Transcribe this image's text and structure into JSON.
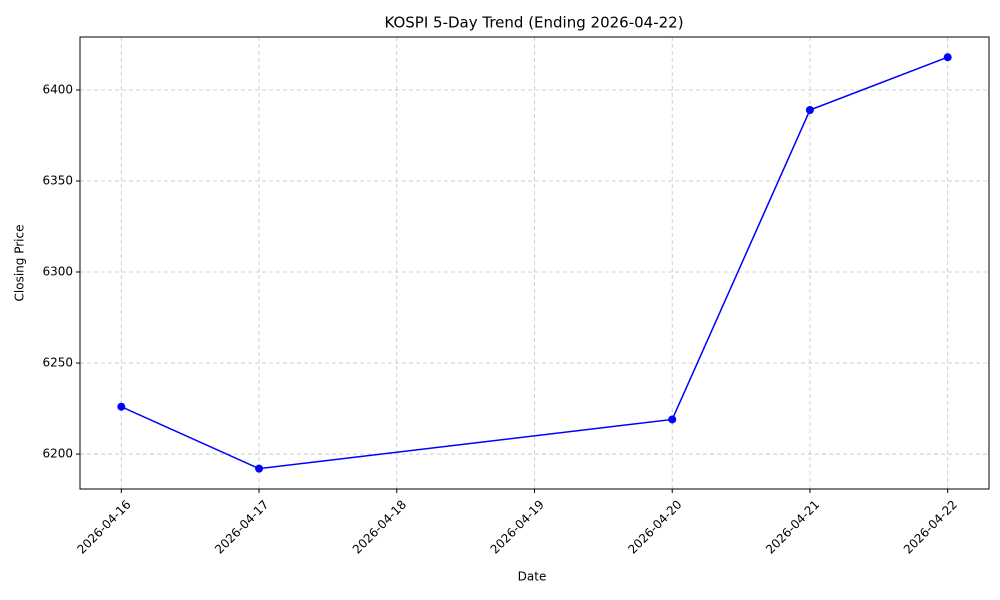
{
  "chart_data": {
    "type": "line",
    "title": "KOSPI 5-Day Trend (Ending 2026-04-22)",
    "x_label": "Date",
    "y_label": "Closing Price",
    "x": [
      "2026-04-16",
      "2026-04-17",
      "2026-04-20",
      "2026-04-21",
      "2026-04-22"
    ],
    "series": [
      {
        "name": "Closing Price",
        "color": "#0000ff",
        "values": [
          6226,
          6192,
          6219,
          6389,
          6418
        ]
      }
    ],
    "xlim": [
      "2026-04-15T16:48",
      "2026-04-22T07:12"
    ],
    "xticks": [
      "2026-04-16",
      "2026-04-17",
      "2026-04-18",
      "2026-04-19",
      "2026-04-20",
      "2026-04-21",
      "2026-04-22"
    ],
    "ylim": [
      6180.8,
      6429.1
    ],
    "yticks": [
      6200,
      6250,
      6300,
      6350,
      6400
    ],
    "grid": true
  }
}
